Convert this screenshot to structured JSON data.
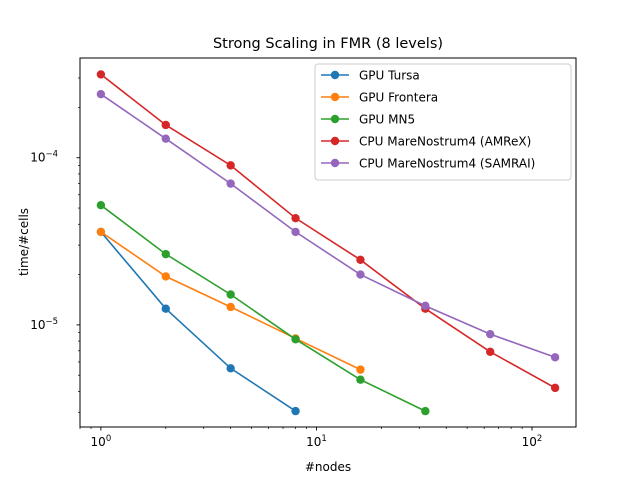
{
  "chart_data": {
    "type": "line",
    "title": "Strong Scaling in FMR (8 levels)",
    "xlabel": "#nodes",
    "ylabel": "time/#cells",
    "xscale": "log",
    "yscale": "log",
    "xlim": [
      0.8,
      160
    ],
    "ylim": [
      2.45e-06,
      0.000395
    ],
    "x_ticks": [
      {
        "value": 1,
        "base": "10",
        "exp": "0"
      },
      {
        "value": 10,
        "base": "10",
        "exp": "1"
      },
      {
        "value": 100,
        "base": "10",
        "exp": "2"
      }
    ],
    "y_ticks": [
      {
        "value": 1e-05,
        "base": "10",
        "exp": "−5"
      },
      {
        "value": 0.0001,
        "base": "10",
        "exp": "−4"
      }
    ],
    "legend_position": "top-right",
    "grid": false,
    "series": [
      {
        "name": "GPU Tursa",
        "color": "#1f77b4",
        "x": [
          1,
          2,
          4,
          8
        ],
        "y": [
          3.6e-05,
          1.25e-05,
          5.5e-06,
          3.05e-06
        ]
      },
      {
        "name": "GPU Frontera",
        "color": "#ff7f0e",
        "x": [
          1,
          2,
          4,
          8,
          16
        ],
        "y": [
          3.6e-05,
          1.95e-05,
          1.28e-05,
          8.3e-06,
          5.4e-06
        ]
      },
      {
        "name": "GPU MN5",
        "color": "#2ca02c",
        "x": [
          1,
          2,
          4,
          8,
          16,
          32
        ],
        "y": [
          5.2e-05,
          2.65e-05,
          1.52e-05,
          8.2e-06,
          4.7e-06,
          3.05e-06
        ]
      },
      {
        "name": "CPU MareNostrum4 (AMReX)",
        "color": "#d62728",
        "x": [
          1,
          2,
          4,
          8,
          16,
          32,
          64,
          128
        ],
        "y": [
          0.000315,
          0.000157,
          9e-05,
          4.35e-05,
          2.45e-05,
          1.25e-05,
          6.9e-06,
          4.2e-06
        ]
      },
      {
        "name": "CPU MareNostrum4 (SAMRAI)",
        "color": "#9467bd",
        "x": [
          1,
          2,
          4,
          8,
          16,
          32,
          64,
          128
        ],
        "y": [
          0.00024,
          0.00013,
          7e-05,
          3.6e-05,
          2e-05,
          1.3e-05,
          8.8e-06,
          6.4e-06
        ]
      }
    ]
  }
}
